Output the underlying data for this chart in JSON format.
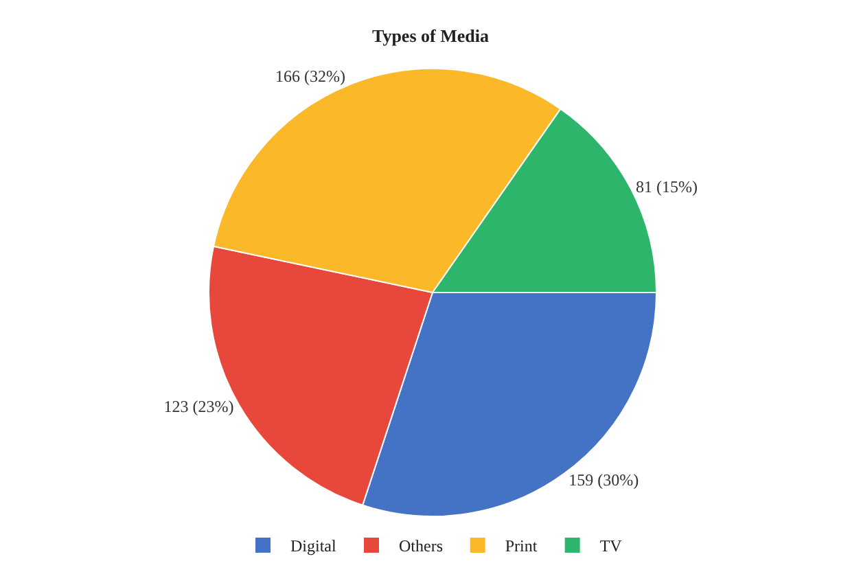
{
  "chart_data": {
    "type": "pie",
    "title": "Types of Media",
    "categories": [
      "Digital",
      "Others",
      "Print",
      "TV"
    ],
    "values": [
      159,
      123,
      166,
      81
    ],
    "value_labels": [
      "159 (30%)",
      "123 (23%)",
      "166 (32%)",
      "81 (15%)"
    ],
    "colors": [
      "#4472c4",
      "#e8483b",
      "#fbb829",
      "#2db56b"
    ],
    "legend": "bottom"
  }
}
